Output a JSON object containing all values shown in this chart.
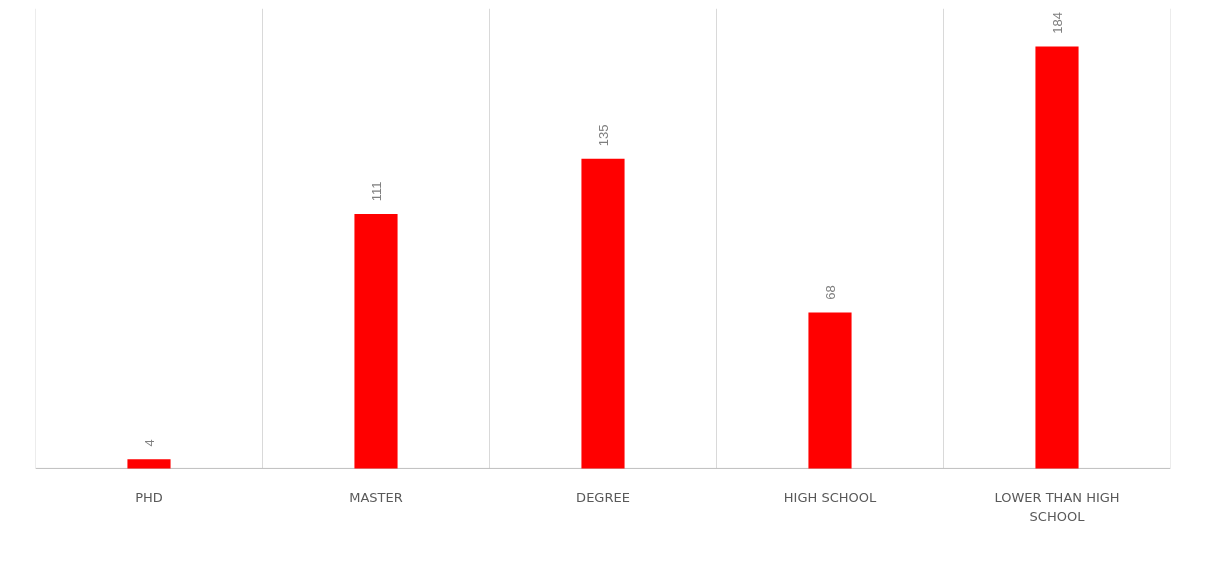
{
  "chart_data": {
    "type": "bar",
    "categories": [
      "PHD",
      "MASTER",
      "DEGREE",
      "HIGH SCHOOL",
      "LOWER THAN HIGH SCHOOL"
    ],
    "values": [
      4,
      111,
      135,
      68,
      184
    ],
    "color": "#ff0000",
    "data_labels": true,
    "grid": "x"
  }
}
